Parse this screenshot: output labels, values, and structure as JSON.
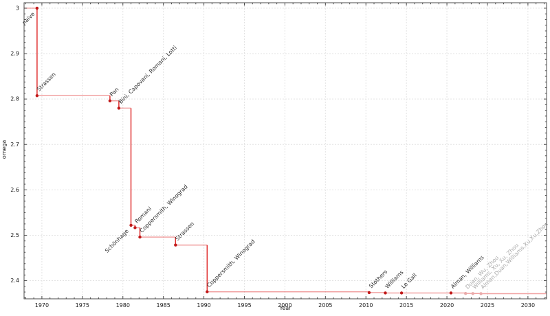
{
  "chart_data": {
    "type": "line",
    "step": "post",
    "title": "",
    "xlabel": "Year",
    "ylabel": "omega",
    "xlim": [
      1967.8,
      2032.3
    ],
    "ylim": [
      2.36,
      3.012
    ],
    "x_ticks": [
      1970,
      1975,
      1980,
      1985,
      1990,
      1995,
      2000,
      2005,
      2010,
      2015,
      2020,
      2025,
      2030
    ],
    "x_minor_step": 1,
    "y_ticks": [
      2.4,
      2.5,
      2.6,
      2.7,
      2.8,
      2.9,
      3
    ],
    "y_tick_labels": [
      "2.4",
      "2.5",
      "2.6",
      "2.7",
      "2.8",
      "2.9",
      "3"
    ],
    "y_minor_step": 0.0125,
    "grid": true,
    "legend": "none",
    "colors": {
      "line": "#e03131",
      "line_horizontal_opacity": 0.45,
      "marker": "#c01818",
      "muted_marker": "#e9aaaa",
      "label_text": "#2e2e2e",
      "muted_label_text": "#ababab",
      "grid": "#e3e3e3",
      "spine": "#4a4a4a",
      "tick_text": "#1a1a1a"
    },
    "points": [
      {
        "label": "naive",
        "x": 1969.4,
        "y": 3.0,
        "anchor": "below",
        "muted": false
      },
      {
        "label": "Strassen",
        "x": 1969.4,
        "y": 2.8074,
        "anchor": "above",
        "muted": false
      },
      {
        "label": "Pan",
        "x": 1978.4,
        "y": 2.796,
        "anchor": "above",
        "muted": false
      },
      {
        "label": "Bini, Capovani, Romani, Lotti",
        "x": 1979.5,
        "y": 2.7799,
        "anchor": "above",
        "muted": false
      },
      {
        "label": "Schönhage",
        "x": 1981.0,
        "y": 2.522,
        "anchor": "below",
        "muted": false
      },
      {
        "label": "Romani",
        "x": 1981.5,
        "y": 2.5166,
        "anchor": "above",
        "muted": false
      },
      {
        "label": "Coppersmith, Winograd",
        "x": 1982.1,
        "y": 2.496,
        "anchor": "above",
        "muted": false
      },
      {
        "label": "Strassen",
        "x": 1986.5,
        "y": 2.4785,
        "anchor": "above",
        "muted": false
      },
      {
        "label": "Coppersmith, Winograd",
        "x": 1990.4,
        "y": 2.3755,
        "anchor": "above",
        "muted": false
      },
      {
        "label": "Stothers",
        "x": 2010.4,
        "y": 2.3737,
        "anchor": "above",
        "muted": false
      },
      {
        "label": "Williams",
        "x": 2012.4,
        "y": 2.3729,
        "anchor": "above",
        "muted": false
      },
      {
        "label": "Le Gall",
        "x": 2014.4,
        "y": 2.3729,
        "anchor": "above",
        "muted": false
      },
      {
        "label": "Alman, Williams",
        "x": 2020.5,
        "y": 2.3729,
        "anchor": "above",
        "muted": false
      },
      {
        "label": "Duan, Wu, Zhou",
        "x": 2022.3,
        "y": 2.3719,
        "anchor": "above",
        "muted": true
      },
      {
        "label": "Williams, Xu, Xu, Zhou",
        "x": 2023.2,
        "y": 2.3716,
        "anchor": "above",
        "muted": true
      },
      {
        "label": "Alman,Duan,Williams,Xu,Xu,Zhou",
        "x": 2024.2,
        "y": 2.3714,
        "anchor": "above",
        "muted": true
      }
    ]
  }
}
